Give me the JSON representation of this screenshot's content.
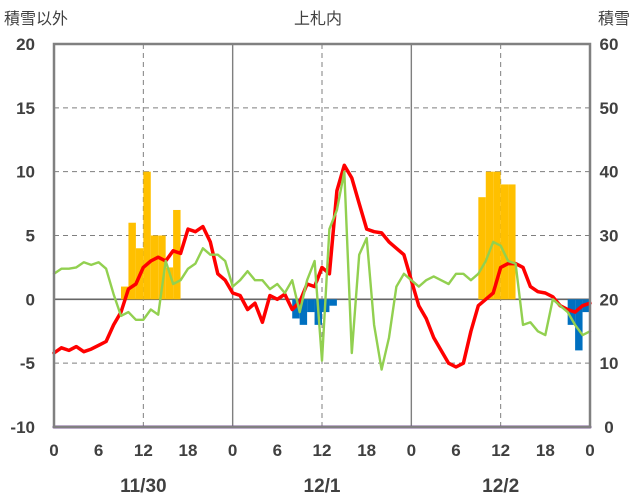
{
  "chart_data": {
    "type": "bar+line",
    "title": "上札内",
    "left_axis_label": "積雪以外",
    "right_axis_label": "積雪",
    "left_ylim": [
      -10,
      20
    ],
    "left_ticks": [
      "20",
      "15",
      "10",
      "5",
      "0",
      "-5",
      "-10"
    ],
    "right_ylim": [
      0,
      60
    ],
    "right_ticks": [
      "60",
      "50",
      "40",
      "30",
      "20",
      "10",
      "0"
    ],
    "x_hours": [
      0,
      72
    ],
    "x_tick_labels": [
      "0",
      "6",
      "12",
      "18",
      "0",
      "6",
      "12",
      "18",
      "0",
      "6",
      "12",
      "18",
      "0"
    ],
    "date_labels": [
      "11/30",
      "12/1",
      "12/2"
    ],
    "grid": "solid at day boundaries, dashed at 12:00 and horizontal every 5",
    "colors": {
      "bar_positive": "#ffc000",
      "bar_negative": "#0070c0",
      "red_line": "#ff0000",
      "green_line": "#92d050",
      "purple_line": "#7030a0",
      "frame": "#808080"
    },
    "bars": [
      {
        "hour": 10,
        "value": 1
      },
      {
        "hour": 11,
        "value": 6
      },
      {
        "hour": 12,
        "value": 4
      },
      {
        "hour": 13,
        "value": 10
      },
      {
        "hour": 14,
        "value": 5
      },
      {
        "hour": 15,
        "value": 5
      },
      {
        "hour": 16,
        "value": 2.5
      },
      {
        "hour": 17,
        "value": 7
      },
      {
        "hour": 33,
        "value": -1.5
      },
      {
        "hour": 34,
        "value": -2
      },
      {
        "hour": 35,
        "value": -1
      },
      {
        "hour": 36,
        "value": -2
      },
      {
        "hour": 37,
        "value": -1
      },
      {
        "hour": 38,
        "value": -0.5
      },
      {
        "hour": 58,
        "value": 8
      },
      {
        "hour": 59,
        "value": 10
      },
      {
        "hour": 60,
        "value": 10
      },
      {
        "hour": 61,
        "value": 9
      },
      {
        "hour": 62,
        "value": 9
      },
      {
        "hour": 70,
        "value": -2
      },
      {
        "hour": 71,
        "value": -4
      },
      {
        "hour": 72,
        "value": -1
      }
    ],
    "series": [
      {
        "color": "red",
        "points": [
          [
            0,
            -4.2
          ],
          [
            1,
            -3.8
          ],
          [
            2,
            -4.0
          ],
          [
            3,
            -3.7
          ],
          [
            4,
            -4.1
          ],
          [
            5,
            -3.9
          ],
          [
            6,
            -3.6
          ],
          [
            7,
            -3.3
          ],
          [
            8,
            -2.0
          ],
          [
            9,
            -1.0
          ],
          [
            10,
            0.8
          ],
          [
            11,
            1.2
          ],
          [
            12,
            2.5
          ],
          [
            13,
            3.0
          ],
          [
            14,
            3.3
          ],
          [
            15,
            3.0
          ],
          [
            16,
            3.8
          ],
          [
            17,
            3.6
          ],
          [
            18,
            5.5
          ],
          [
            19,
            5.3
          ],
          [
            20,
            5.7
          ],
          [
            21,
            4.5
          ],
          [
            22,
            2.0
          ],
          [
            23,
            1.5
          ],
          [
            24,
            0.5
          ],
          [
            25,
            0.3
          ],
          [
            26,
            -0.8
          ],
          [
            27,
            -0.3
          ],
          [
            28,
            -1.8
          ],
          [
            29,
            0.3
          ],
          [
            30,
            0.0
          ],
          [
            31,
            0.4
          ],
          [
            32,
            -0.8
          ],
          [
            33,
            -0.2
          ],
          [
            34,
            1.2
          ],
          [
            35,
            1.0
          ],
          [
            36,
            2.5
          ],
          [
            37,
            2.0
          ],
          [
            38,
            8.5
          ],
          [
            39,
            10.5
          ],
          [
            40,
            9.5
          ],
          [
            41,
            7.5
          ],
          [
            42,
            5.5
          ],
          [
            43,
            5.3
          ],
          [
            44,
            5.2
          ],
          [
            45,
            4.5
          ],
          [
            46,
            4.0
          ],
          [
            47,
            3.5
          ],
          [
            48,
            1.5
          ],
          [
            49,
            -0.5
          ],
          [
            50,
            -1.5
          ],
          [
            51,
            -3.0
          ],
          [
            52,
            -4.0
          ],
          [
            53,
            -5.0
          ],
          [
            54,
            -5.3
          ],
          [
            55,
            -5.0
          ],
          [
            56,
            -2.5
          ],
          [
            57,
            -0.5
          ],
          [
            58,
            0.0
          ],
          [
            59,
            0.5
          ],
          [
            60,
            2.5
          ],
          [
            61,
            2.8
          ],
          [
            62,
            2.8
          ],
          [
            63,
            2.5
          ],
          [
            64,
            1.0
          ],
          [
            65,
            0.6
          ],
          [
            66,
            0.5
          ],
          [
            67,
            0.2
          ],
          [
            68,
            -0.5
          ],
          [
            69,
            -0.8
          ],
          [
            70,
            -1.0
          ],
          [
            71,
            -0.5
          ],
          [
            72,
            -0.3
          ]
        ]
      },
      {
        "color": "green",
        "points": [
          [
            0,
            2.0
          ],
          [
            1,
            2.4
          ],
          [
            2,
            2.4
          ],
          [
            3,
            2.5
          ],
          [
            4,
            2.9
          ],
          [
            5,
            2.7
          ],
          [
            6,
            2.9
          ],
          [
            7,
            2.4
          ],
          [
            8,
            0.4
          ],
          [
            9,
            -1.3
          ],
          [
            10,
            -1.0
          ],
          [
            11,
            -1.6
          ],
          [
            12,
            -1.6
          ],
          [
            13,
            -0.8
          ],
          [
            14,
            -1.2
          ],
          [
            15,
            3.0
          ],
          [
            16,
            1.2
          ],
          [
            17,
            1.5
          ],
          [
            18,
            2.4
          ],
          [
            19,
            2.8
          ],
          [
            20,
            4.0
          ],
          [
            21,
            3.5
          ],
          [
            22,
            3.5
          ],
          [
            23,
            3.0
          ],
          [
            24,
            1.0
          ],
          [
            25,
            1.5
          ],
          [
            26,
            2.2
          ],
          [
            27,
            1.5
          ],
          [
            28,
            1.5
          ],
          [
            29,
            0.8
          ],
          [
            30,
            1.2
          ],
          [
            31,
            0.5
          ],
          [
            32,
            1.5
          ],
          [
            33,
            -1.0
          ],
          [
            34,
            1.5
          ],
          [
            35,
            3.0
          ],
          [
            36,
            -4.8
          ],
          [
            37,
            5.5
          ],
          [
            38,
            7.0
          ],
          [
            39,
            10.0
          ],
          [
            40,
            -4.2
          ],
          [
            41,
            3.5
          ],
          [
            42,
            4.8
          ],
          [
            43,
            -2.0
          ],
          [
            44,
            -5.5
          ],
          [
            45,
            -3.0
          ],
          [
            46,
            1.0
          ],
          [
            47,
            2.0
          ],
          [
            48,
            1.5
          ],
          [
            49,
            1.0
          ],
          [
            50,
            1.5
          ],
          [
            51,
            1.8
          ],
          [
            52,
            1.5
          ],
          [
            53,
            1.2
          ],
          [
            54,
            2.0
          ],
          [
            55,
            2.0
          ],
          [
            56,
            1.5
          ],
          [
            57,
            2.0
          ],
          [
            58,
            3.0
          ],
          [
            59,
            4.5
          ],
          [
            60,
            4.2
          ],
          [
            61,
            3.0
          ],
          [
            62,
            2.8
          ],
          [
            63,
            -2.0
          ],
          [
            64,
            -1.8
          ],
          [
            65,
            -2.5
          ],
          [
            66,
            -2.8
          ],
          [
            67,
            0.0
          ],
          [
            68,
            -0.5
          ],
          [
            69,
            -1.0
          ],
          [
            70,
            -2.0
          ],
          [
            71,
            -2.8
          ],
          [
            72,
            -2.5
          ]
        ]
      },
      {
        "color": "purple",
        "points": [
          [
            0,
            -10
          ],
          [
            72,
            -10
          ]
        ]
      }
    ]
  }
}
